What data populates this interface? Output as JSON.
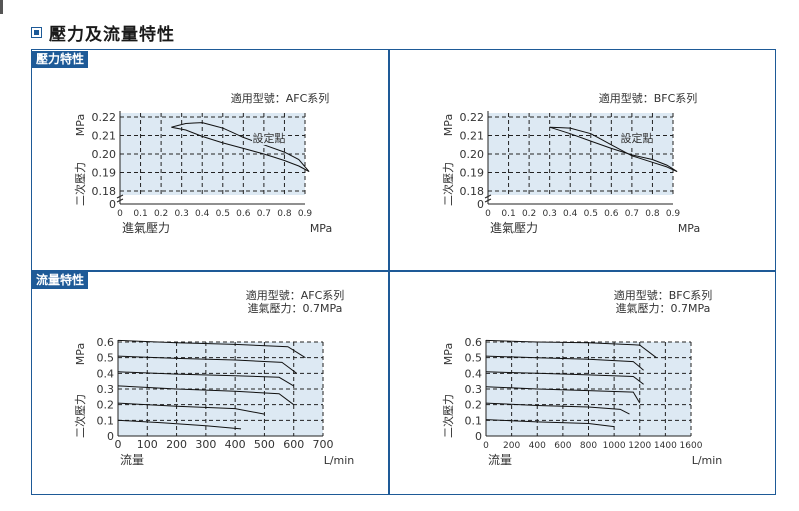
{
  "page": {
    "heading": "壓力及流量特性",
    "pressure_section_label": "壓力特性",
    "flow_section_label": "流量特性"
  },
  "chart_data": [
    {
      "id": "afc-pressure",
      "type": "line",
      "note_lines": [
        "適用型號：AFC系列"
      ],
      "annotation": "設定點",
      "xlabel": "進氣壓力",
      "xunit": "MPa",
      "ylabel": "二次壓力",
      "yunit": "MPa",
      "x_ticks": [
        "0",
        "0.1",
        "0.2",
        "0.3",
        "0.4",
        "0.5",
        "0.6",
        "0.7",
        "0.8",
        "0.9"
      ],
      "y_ticks": [
        "0",
        "0.18",
        "0.19",
        "0.20",
        "0.21",
        "0.22"
      ],
      "xlim": [
        0,
        0.9
      ],
      "y_break": true,
      "series": [
        {
          "x": [
            0.25,
            0.32,
            0.4,
            0.5,
            0.6,
            0.7,
            0.8,
            0.87,
            0.92
          ],
          "y": [
            0.2145,
            0.2165,
            0.217,
            0.214,
            0.209,
            0.205,
            0.201,
            0.197,
            0.1905
          ]
        },
        {
          "x": [
            0.25,
            0.32,
            0.4,
            0.5,
            0.6,
            0.7,
            0.8,
            0.87,
            0.92
          ],
          "y": [
            0.2145,
            0.213,
            0.2095,
            0.206,
            0.203,
            0.2,
            0.1965,
            0.1935,
            0.1905
          ]
        }
      ]
    },
    {
      "id": "bfc-pressure",
      "type": "line",
      "note_lines": [
        "適用型號：BFC系列"
      ],
      "annotation": "設定點",
      "xlabel": "進氣壓力",
      "xunit": "MPa",
      "ylabel": "二次壓力",
      "yunit": "MPa",
      "x_ticks": [
        "0",
        "0.1",
        "0.2",
        "0.3",
        "0.4",
        "0.5",
        "0.6",
        "0.7",
        "0.8",
        "0.9"
      ],
      "y_ticks": [
        "0",
        "0.18",
        "0.19",
        "0.20",
        "0.21",
        "0.22"
      ],
      "xlim": [
        0,
        0.9
      ],
      "y_break": true,
      "series": [
        {
          "x": [
            0.3,
            0.4,
            0.5,
            0.6,
            0.7,
            0.8,
            0.87,
            0.92
          ],
          "y": [
            0.2145,
            0.214,
            0.211,
            0.205,
            0.199,
            0.1955,
            0.193,
            0.1905
          ]
        },
        {
          "x": [
            0.3,
            0.4,
            0.5,
            0.6,
            0.7,
            0.8,
            0.87,
            0.92
          ],
          "y": [
            0.2145,
            0.211,
            0.207,
            0.203,
            0.1995,
            0.197,
            0.194,
            0.1905
          ]
        }
      ]
    },
    {
      "id": "afc-flow",
      "type": "line",
      "note_lines": [
        "適用型號：AFC系列",
        "進氣壓力：0.7MPa"
      ],
      "xlabel": "流量",
      "xunit": "L/min",
      "ylabel": "二次壓力",
      "yunit": "MPa",
      "x_ticks": [
        "0",
        "100",
        "200",
        "300",
        "400",
        "500",
        "600",
        "700"
      ],
      "y_ticks": [
        "0",
        "0.1",
        "0.2",
        "0.3",
        "0.4",
        "0.5",
        "0.6"
      ],
      "xlim": [
        0,
        700
      ],
      "ylim": [
        0,
        0.6
      ],
      "series": [
        {
          "x": [
            0,
            150,
            300,
            420
          ],
          "y": [
            0.1,
            0.085,
            0.065,
            0.045
          ]
        },
        {
          "x": [
            0,
            200,
            400,
            500
          ],
          "y": [
            0.21,
            0.19,
            0.175,
            0.14
          ]
        },
        {
          "x": [
            0,
            200,
            400,
            550,
            600
          ],
          "y": [
            0.32,
            0.3,
            0.285,
            0.27,
            0.2
          ]
        },
        {
          "x": [
            0,
            200,
            400,
            550,
            600
          ],
          "y": [
            0.41,
            0.395,
            0.385,
            0.375,
            0.32
          ]
        },
        {
          "x": [
            0,
            200,
            400,
            560,
            610
          ],
          "y": [
            0.51,
            0.495,
            0.485,
            0.47,
            0.4
          ]
        },
        {
          "x": [
            0,
            200,
            400,
            580,
            640
          ],
          "y": [
            0.61,
            0.595,
            0.585,
            0.57,
            0.5
          ]
        }
      ]
    },
    {
      "id": "bfc-flow",
      "type": "line",
      "note_lines": [
        "適用型號：BFC系列",
        "進氣壓力：0.7MPa"
      ],
      "xlabel": "流量",
      "xunit": "L/min",
      "ylabel": "二次壓力",
      "yunit": "MPa",
      "x_ticks": [
        "0",
        "200",
        "400",
        "600",
        "800",
        "1000",
        "1200",
        "1400",
        "1600"
      ],
      "y_ticks": [
        "0",
        "0.1",
        "0.2",
        "0.3",
        "0.4",
        "0.5",
        "0.6"
      ],
      "xlim": [
        0,
        1600
      ],
      "ylim": [
        0,
        0.6
      ],
      "series": [
        {
          "x": [
            0,
            400,
            800,
            1000
          ],
          "y": [
            0.105,
            0.09,
            0.08,
            0.06
          ]
        },
        {
          "x": [
            0,
            400,
            800,
            1050,
            1120
          ],
          "y": [
            0.21,
            0.195,
            0.185,
            0.17,
            0.14
          ]
        },
        {
          "x": [
            0,
            400,
            800,
            1150,
            1200
          ],
          "y": [
            0.315,
            0.3,
            0.29,
            0.28,
            0.21
          ]
        },
        {
          "x": [
            0,
            400,
            800,
            1150,
            1230
          ],
          "y": [
            0.41,
            0.4,
            0.39,
            0.38,
            0.33
          ]
        },
        {
          "x": [
            0,
            400,
            800,
            1150,
            1230
          ],
          "y": [
            0.51,
            0.5,
            0.49,
            0.475,
            0.42
          ]
        },
        {
          "x": [
            0,
            400,
            800,
            1200,
            1330
          ],
          "y": [
            0.61,
            0.6,
            0.595,
            0.58,
            0.5
          ]
        }
      ]
    }
  ]
}
